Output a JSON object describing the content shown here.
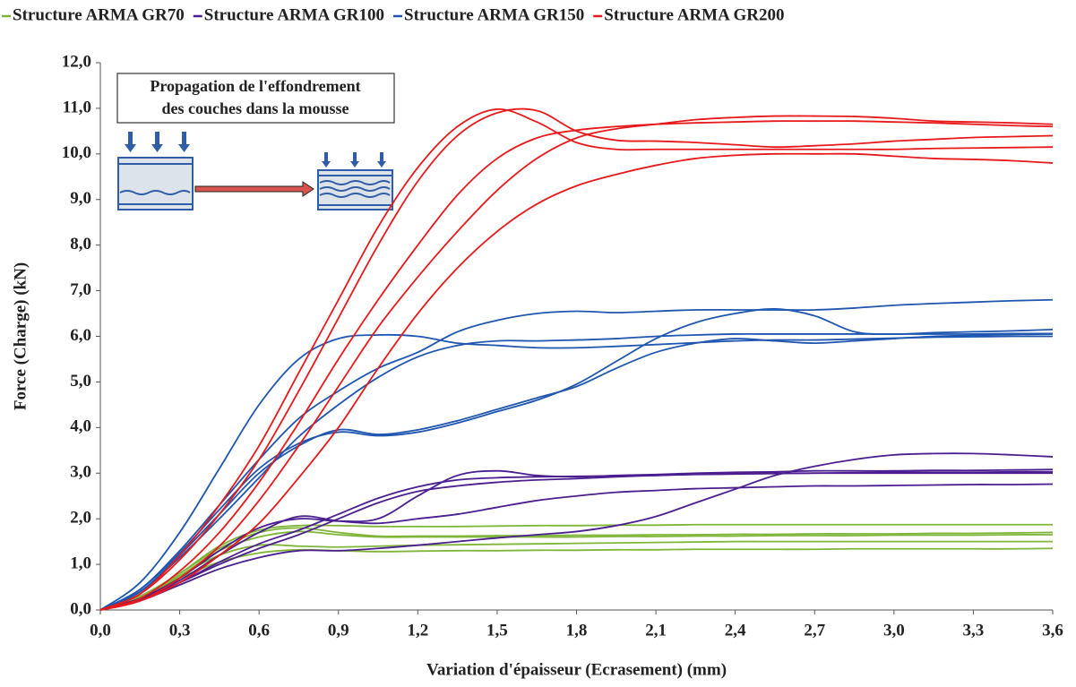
{
  "chart_data": {
    "type": "line",
    "xlabel": "Variation d'épaisseur (Ecrasement) (mm)",
    "ylabel": "Force (Charge) (kN)",
    "annotation": [
      "Propagation de l'effondrement",
      "des couches dans la mousse"
    ],
    "xlim": [
      0,
      3.6
    ],
    "ylim": [
      0,
      12
    ],
    "xticks": [
      {
        "value": 0,
        "label": "0,0"
      },
      {
        "value": 0.3,
        "label": "0,3"
      },
      {
        "value": 0.6,
        "label": "0,6"
      },
      {
        "value": 0.9,
        "label": "0,9"
      },
      {
        "value": 1.2,
        "label": "1,2"
      },
      {
        "value": 1.5,
        "label": "1,5"
      },
      {
        "value": 1.8,
        "label": "1,8"
      },
      {
        "value": 2.1,
        "label": "2,1"
      },
      {
        "value": 2.4,
        "label": "2,4"
      },
      {
        "value": 2.7,
        "label": "2,7"
      },
      {
        "value": 3.0,
        "label": "3,0"
      },
      {
        "value": 3.3,
        "label": "3,3"
      },
      {
        "value": 3.6,
        "label": "3,6"
      }
    ],
    "yticks": [
      {
        "value": 0,
        "label": "0,0"
      },
      {
        "value": 1,
        "label": "1,0"
      },
      {
        "value": 2,
        "label": "2,0"
      },
      {
        "value": 3,
        "label": "3,0"
      },
      {
        "value": 4,
        "label": "4,0"
      },
      {
        "value": 5,
        "label": "5,0"
      },
      {
        "value": 6,
        "label": "6,0"
      },
      {
        "value": 7,
        "label": "7,0"
      },
      {
        "value": 8,
        "label": "8,0"
      },
      {
        "value": 9,
        "label": "9,0"
      },
      {
        "value": 10,
        "label": "10,0"
      },
      {
        "value": 11,
        "label": "11,0"
      },
      {
        "value": 12,
        "label": "12,0"
      }
    ],
    "legend": "top",
    "x": [
      0,
      0.15,
      0.3,
      0.45,
      0.6,
      0.75,
      0.9,
      1.05,
      1.2,
      1.35,
      1.5,
      1.65,
      1.8,
      1.95,
      2.1,
      2.25,
      2.4,
      2.55,
      2.7,
      2.85,
      3.0,
      3.15,
      3.3,
      3.45,
      3.6
    ],
    "series": [
      {
        "name": "Structure ARMA GR70",
        "color": "#7fb63a",
        "specimens": [
          {
            "values": [
              0,
              0.3,
              0.8,
              1.4,
              1.75,
              1.85,
              1.85,
              1.83,
              1.83,
              1.83,
              1.84,
              1.85,
              1.85,
              1.86,
              1.86,
              1.87,
              1.87,
              1.87,
              1.87,
              1.87,
              1.87,
              1.87,
              1.87,
              1.87,
              1.87
            ]
          },
          {
            "values": [
              0,
              0.3,
              0.8,
              1.35,
              1.7,
              1.8,
              1.7,
              1.62,
              1.62,
              1.62,
              1.63,
              1.63,
              1.64,
              1.64,
              1.65,
              1.65,
              1.66,
              1.66,
              1.67,
              1.67,
              1.67,
              1.68,
              1.68,
              1.69,
              1.7
            ]
          },
          {
            "values": [
              0,
              0.3,
              0.75,
              1.2,
              1.42,
              1.4,
              1.38,
              1.4,
              1.42,
              1.43,
              1.44,
              1.45,
              1.46,
              1.47,
              1.48,
              1.49,
              1.5,
              1.5,
              1.5,
              1.5,
              1.5,
              1.5,
              1.5,
              1.5,
              1.5
            ]
          },
          {
            "values": [
              0,
              0.28,
              0.7,
              1.05,
              1.25,
              1.32,
              1.3,
              1.28,
              1.29,
              1.3,
              1.3,
              1.31,
              1.31,
              1.32,
              1.32,
              1.33,
              1.33,
              1.33,
              1.33,
              1.34,
              1.34,
              1.34,
              1.34,
              1.34,
              1.35
            ]
          },
          {
            "values": [
              0,
              0.3,
              0.75,
              1.3,
              1.6,
              1.72,
              1.65,
              1.6,
              1.6,
              1.6,
              1.6,
              1.6,
              1.6,
              1.61,
              1.61,
              1.62,
              1.62,
              1.63,
              1.63,
              1.63,
              1.64,
              1.64,
              1.64,
              1.65,
              1.65
            ]
          }
        ]
      },
      {
        "name": "Structure ARMA GR100",
        "color": "#4b1f8f",
        "specimens": [
          {
            "values": [
              0,
              0.25,
              0.7,
              1.3,
              1.8,
              2.0,
              1.95,
              2.0,
              2.5,
              2.95,
              3.05,
              2.95,
              2.92,
              2.95,
              2.97,
              3.0,
              3.02,
              3.03,
              3.05,
              3.05,
              3.05,
              3.06,
              3.06,
              3.07,
              3.08
            ]
          },
          {
            "values": [
              0,
              0.25,
              0.65,
              1.2,
              1.7,
              2.05,
              1.95,
              1.9,
              2.0,
              2.1,
              2.25,
              2.4,
              2.5,
              2.58,
              2.62,
              2.66,
              2.68,
              2.7,
              2.72,
              2.72,
              2.73,
              2.74,
              2.75,
              2.75,
              2.76
            ]
          },
          {
            "values": [
              0,
              0.22,
              0.6,
              1.0,
              1.35,
              1.65,
              2.0,
              2.35,
              2.6,
              2.72,
              2.8,
              2.85,
              2.88,
              2.92,
              2.95,
              2.98,
              3.0,
              3.0,
              3.0,
              3.0,
              3.0,
              3.0,
              3.0,
              3.0,
              3.0
            ]
          },
          {
            "values": [
              0,
              0.2,
              0.55,
              0.9,
              1.15,
              1.3,
              1.3,
              1.35,
              1.42,
              1.5,
              1.58,
              1.65,
              1.72,
              1.85,
              2.05,
              2.35,
              2.65,
              2.95,
              3.15,
              3.3,
              3.4,
              3.43,
              3.43,
              3.4,
              3.36
            ]
          },
          {
            "values": [
              0,
              0.22,
              0.6,
              1.05,
              1.45,
              1.75,
              2.1,
              2.45,
              2.7,
              2.85,
              2.9,
              2.92,
              2.93,
              2.94,
              2.95,
              2.97,
              2.98,
              2.99,
              3.0,
              3.01,
              3.02,
              3.02,
              3.02,
              3.03,
              3.03
            ]
          }
        ]
      },
      {
        "name": "Structure ARMA GR150",
        "color": "#1f56b0",
        "specimens": [
          {
            "values": [
              0,
              0.6,
              1.7,
              3.1,
              4.5,
              5.5,
              5.95,
              6.03,
              6.0,
              5.85,
              5.8,
              5.75,
              5.75,
              5.78,
              5.82,
              5.86,
              5.9,
              5.92,
              5.92,
              5.94,
              5.96,
              5.98,
              5.99,
              6.0,
              6.0
            ]
          },
          {
            "values": [
              0,
              0.45,
              1.3,
              2.3,
              3.3,
              4.2,
              4.8,
              5.3,
              5.65,
              6.1,
              6.35,
              6.5,
              6.55,
              6.52,
              6.55,
              6.58,
              6.58,
              6.58,
              6.58,
              6.62,
              6.68,
              6.72,
              6.75,
              6.78,
              6.8
            ]
          },
          {
            "values": [
              0,
              0.45,
              1.25,
              2.2,
              3.1,
              3.65,
              3.9,
              3.82,
              3.9,
              4.1,
              4.35,
              4.6,
              4.95,
              5.45,
              5.95,
              6.3,
              6.5,
              6.6,
              6.45,
              6.1,
              6.05,
              6.08,
              6.1,
              6.12,
              6.15
            ]
          },
          {
            "values": [
              0,
              0.4,
              1.2,
              2.1,
              3.0,
              3.6,
              3.95,
              3.85,
              3.95,
              4.15,
              4.4,
              4.65,
              4.9,
              5.3,
              5.65,
              5.85,
              5.95,
              5.9,
              5.85,
              5.9,
              5.95,
              6.0,
              6.02,
              6.04,
              6.05
            ]
          },
          {
            "values": [
              0,
              0.4,
              1.15,
              2.0,
              2.9,
              3.8,
              4.5,
              5.1,
              5.55,
              5.8,
              5.9,
              5.9,
              5.92,
              5.95,
              6.0,
              6.03,
              6.05,
              6.05,
              6.05,
              6.05,
              6.05,
              6.05,
              6.05,
              6.06,
              6.06
            ]
          }
        ]
      },
      {
        "name": "Structure ARMA GR200",
        "color": "#e8191b",
        "specimens": [
          {
            "values": [
              0,
              0.35,
              1.2,
              2.3,
              3.6,
              5.2,
              6.8,
              8.4,
              9.7,
              10.6,
              10.98,
              10.7,
              10.25,
              10.1,
              10.1,
              10.1,
              10.1,
              10.1,
              10.1,
              10.1,
              10.1,
              10.12,
              10.13,
              10.14,
              10.15
            ]
          },
          {
            "values": [
              0,
              0.35,
              1.1,
              2.1,
              3.3,
              4.8,
              6.4,
              8.0,
              9.4,
              10.4,
              10.9,
              10.95,
              10.5,
              10.3,
              10.28,
              10.25,
              10.2,
              10.15,
              10.18,
              10.22,
              10.28,
              10.32,
              10.36,
              10.38,
              10.4
            ]
          },
          {
            "values": [
              0,
              0.25,
              0.85,
              1.7,
              2.8,
              4.1,
              5.5,
              6.8,
              8.0,
              9.1,
              9.9,
              10.35,
              10.52,
              10.6,
              10.65,
              10.68,
              10.7,
              10.72,
              10.72,
              10.72,
              10.7,
              10.68,
              10.65,
              10.62,
              10.6
            ]
          },
          {
            "values": [
              0,
              0.2,
              0.7,
              1.4,
              2.4,
              3.6,
              4.9,
              6.2,
              7.3,
              8.3,
              9.2,
              9.9,
              10.35,
              10.55,
              10.65,
              10.75,
              10.8,
              10.83,
              10.83,
              10.82,
              10.78,
              10.72,
              10.7,
              10.68,
              10.65
            ]
          },
          {
            "values": [
              0,
              0.2,
              0.6,
              1.2,
              1.9,
              2.9,
              4.0,
              5.3,
              6.5,
              7.5,
              8.3,
              8.9,
              9.3,
              9.55,
              9.75,
              9.9,
              9.97,
              10.0,
              10.0,
              10.0,
              9.95,
              9.9,
              9.88,
              9.85,
              9.8
            ]
          }
        ]
      }
    ]
  }
}
